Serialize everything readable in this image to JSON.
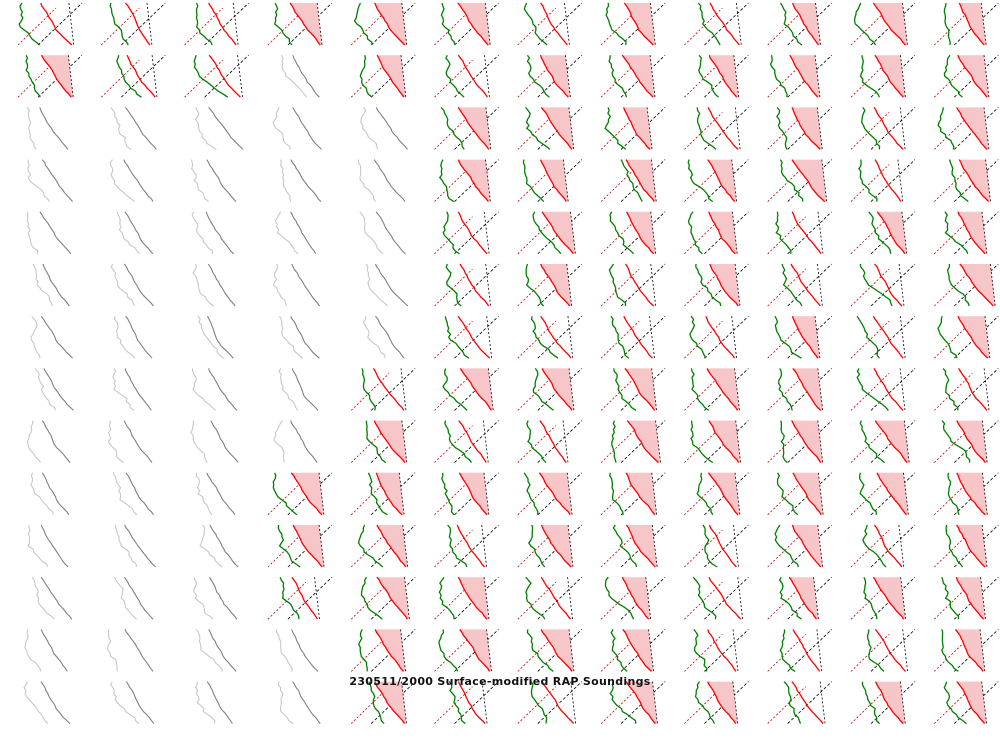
{
  "chart_data": {
    "type": "line",
    "title": "230511/2000 Surface-modified RAP Soundings",
    "layout": {
      "rows": 14,
      "columns": 12
    },
    "series_colors": {
      "temperature": "#ff0000",
      "dewpoint": "#008000",
      "parcel": "#000000",
      "cape_fill": "#f7c6c8",
      "masked_temperature": "#808080",
      "masked_dewpoint": "#c8c8c8",
      "reference_line": "#c00000"
    },
    "masked_cells": [
      [
        1,
        3
      ],
      [
        2,
        0
      ],
      [
        2,
        1
      ],
      [
        2,
        2
      ],
      [
        2,
        3
      ],
      [
        2,
        4
      ],
      [
        3,
        0
      ],
      [
        3,
        1
      ],
      [
        3,
        2
      ],
      [
        3,
        3
      ],
      [
        3,
        4
      ],
      [
        4,
        0
      ],
      [
        4,
        1
      ],
      [
        4,
        2
      ],
      [
        4,
        3
      ],
      [
        4,
        4
      ],
      [
        5,
        0
      ],
      [
        5,
        1
      ],
      [
        5,
        2
      ],
      [
        5,
        3
      ],
      [
        5,
        4
      ],
      [
        6,
        0
      ],
      [
        6,
        1
      ],
      [
        6,
        2
      ],
      [
        6,
        3
      ],
      [
        6,
        4
      ],
      [
        7,
        0
      ],
      [
        7,
        1
      ],
      [
        7,
        2
      ],
      [
        7,
        3
      ],
      [
        8,
        0
      ],
      [
        8,
        1
      ],
      [
        8,
        2
      ],
      [
        8,
        3
      ],
      [
        9,
        0
      ],
      [
        9,
        1
      ],
      [
        9,
        2
      ],
      [
        10,
        0
      ],
      [
        10,
        1
      ],
      [
        10,
        2
      ],
      [
        11,
        0
      ],
      [
        11,
        1
      ],
      [
        11,
        2
      ],
      [
        12,
        0
      ],
      [
        12,
        1
      ],
      [
        12,
        2
      ],
      [
        12,
        3
      ],
      [
        13,
        0
      ],
      [
        13,
        1
      ],
      [
        13,
        2
      ],
      [
        13,
        3
      ]
    ],
    "grid": false
  }
}
